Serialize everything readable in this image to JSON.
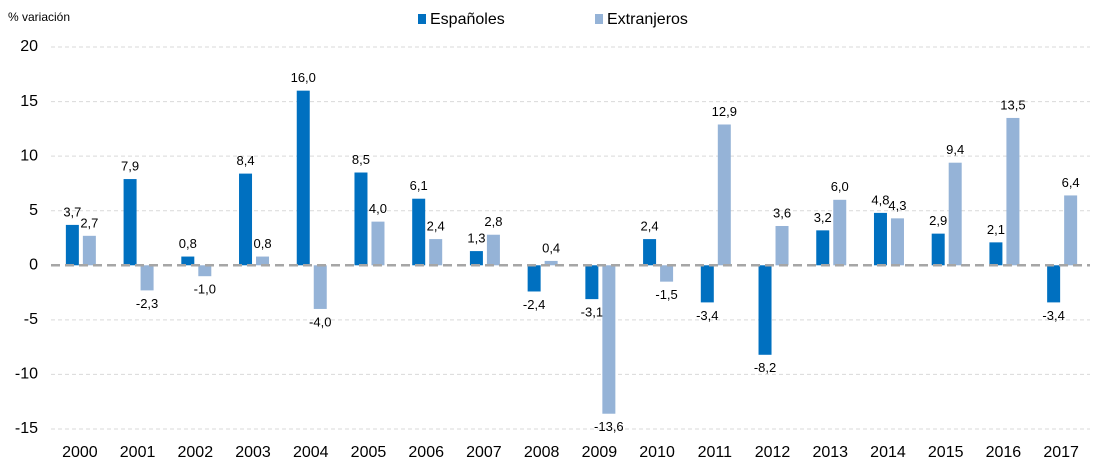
{
  "chart_data": {
    "type": "bar",
    "y_axis_label": "% variación",
    "categories": [
      "2000",
      "2001",
      "2002",
      "2003",
      "2004",
      "2005",
      "2006",
      "2007",
      "2008",
      "2009",
      "2010",
      "2011",
      "2012",
      "2013",
      "2014",
      "2015",
      "2016",
      "2017"
    ],
    "series": [
      {
        "name": "Españoles",
        "color": "#0070c0",
        "values": [
          3.7,
          7.9,
          0.8,
          8.4,
          16.0,
          8.5,
          6.1,
          1.3,
          -2.4,
          -3.1,
          2.4,
          -3.4,
          -8.2,
          3.2,
          4.8,
          2.9,
          2.1,
          -3.4
        ],
        "value_labels": [
          "3,7",
          "7,9",
          "0,8",
          "8,4",
          "16,0",
          "8,5",
          "6,1",
          "1,3",
          "-2,4",
          "-3,1",
          "2,4",
          "-3,4",
          "-8,2",
          "3,2",
          "4,8",
          "2,9",
          "2,1",
          "-3,4"
        ]
      },
      {
        "name": "Extranjeros",
        "color": "#95b3d7",
        "values": [
          2.7,
          -2.3,
          -1.0,
          0.8,
          -4.0,
          4.0,
          2.4,
          2.8,
          0.4,
          -13.6,
          -1.5,
          12.9,
          3.6,
          6.0,
          4.3,
          9.4,
          13.5,
          6.4
        ],
        "value_labels": [
          "2,7",
          "-2,3",
          "-1,0",
          "0,8",
          "-4,0",
          "4,0",
          "2,4",
          "2,8",
          "0,4",
          "-13,6",
          "-1,5",
          "12,9",
          "3,6",
          "6,0",
          "4,3",
          "9,4",
          "13,5",
          "6,4"
        ]
      }
    ],
    "ylim": [
      -15,
      20
    ],
    "yticks": [
      20,
      15,
      10,
      5,
      0,
      -5,
      -10,
      -15
    ],
    "grid": true,
    "legend": "top"
  }
}
